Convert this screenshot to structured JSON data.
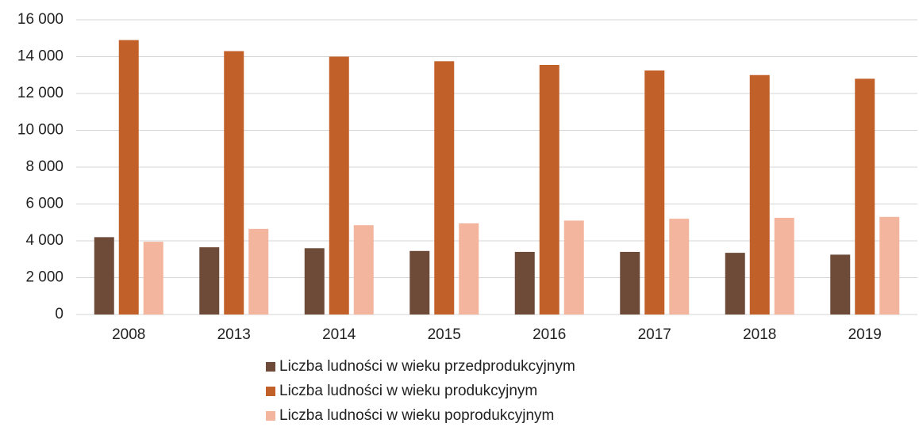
{
  "chart_data": {
    "type": "bar",
    "categories": [
      "2008",
      "2013",
      "2014",
      "2015",
      "2016",
      "2017",
      "2018",
      "2019"
    ],
    "series": [
      {
        "name": "Liczba ludności w wieku przedprodukcyjnym",
        "color": "#6e4a38",
        "values": [
          4200,
          3650,
          3600,
          3450,
          3400,
          3400,
          3350,
          3250
        ]
      },
      {
        "name": "Liczba ludności w wieku produkcyjnym",
        "color": "#c2602a",
        "values": [
          14900,
          14300,
          14000,
          13750,
          13550,
          13250,
          13000,
          12800
        ]
      },
      {
        "name": "Liczba ludności w wieku poprodukcyjnym",
        "color": "#f3b59d",
        "values": [
          3950,
          4650,
          4850,
          4950,
          5100,
          5200,
          5250,
          5300
        ]
      }
    ],
    "ylim": [
      0,
      16000
    ],
    "yticks": [
      0,
      {
        "value": 2000,
        "label": "2 000"
      },
      {
        "value": 4000,
        "label": "4 000"
      },
      {
        "value": 6000,
        "label": "6 000"
      },
      {
        "value": 8000,
        "label": "8 000"
      },
      {
        "value": 10000,
        "label": "10 000"
      },
      {
        "value": 12000,
        "label": "12 000"
      },
      {
        "value": 14000,
        "label": "14 000"
      },
      {
        "value": 16000,
        "label": "16 000"
      }
    ],
    "grid": true,
    "legend": "bottom"
  }
}
